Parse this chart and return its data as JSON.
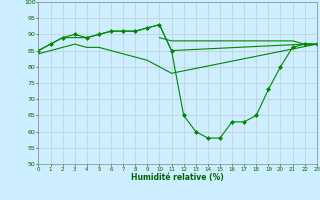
{
  "xlabel": "Humidité relative (%)",
  "background_color": "#cceeff",
  "grid_color": "#bbbbbb",
  "line_color": "#008800",
  "ylim": [
    50,
    100
  ],
  "xlim": [
    0,
    23
  ],
  "yticks": [
    50,
    55,
    60,
    65,
    70,
    75,
    80,
    85,
    90,
    95,
    100
  ],
  "xticks": [
    0,
    1,
    2,
    3,
    4,
    5,
    6,
    7,
    8,
    9,
    10,
    11,
    12,
    13,
    14,
    15,
    16,
    17,
    18,
    19,
    20,
    21,
    22,
    23
  ],
  "series": [
    {
      "x": [
        0,
        1,
        2,
        3,
        4,
        5,
        6,
        7,
        8,
        9,
        10,
        11,
        12,
        13,
        14,
        15,
        16,
        17,
        18,
        19,
        20,
        21,
        22,
        23
      ],
      "y": [
        85,
        87,
        89,
        90,
        89,
        90,
        91,
        91,
        91,
        92,
        93,
        85,
        65,
        60,
        58,
        58,
        63,
        63,
        65,
        73,
        80,
        86,
        87,
        87
      ],
      "marker": "D",
      "markersize": 2.0
    },
    {
      "x": [
        10,
        11,
        12,
        13,
        14,
        15,
        16,
        17,
        18,
        19,
        20,
        21,
        22,
        23
      ],
      "y": [
        89,
        88,
        88,
        88,
        88,
        88,
        88,
        88,
        88,
        88,
        88,
        88,
        87,
        87
      ],
      "marker": null,
      "markersize": 0
    },
    {
      "x": [
        0,
        1,
        2,
        3,
        4,
        5,
        6,
        7,
        8,
        9,
        10,
        11,
        22,
        23
      ],
      "y": [
        85,
        87,
        89,
        89,
        89,
        90,
        91,
        91,
        91,
        92,
        93,
        85,
        87,
        87
      ],
      "marker": null,
      "markersize": 0
    },
    {
      "x": [
        0,
        1,
        2,
        3,
        4,
        5,
        6,
        7,
        8,
        9,
        10,
        11,
        23
      ],
      "y": [
        84,
        85,
        86,
        87,
        86,
        86,
        85,
        84,
        83,
        82,
        80,
        78,
        87
      ],
      "marker": null,
      "markersize": 0
    }
  ]
}
